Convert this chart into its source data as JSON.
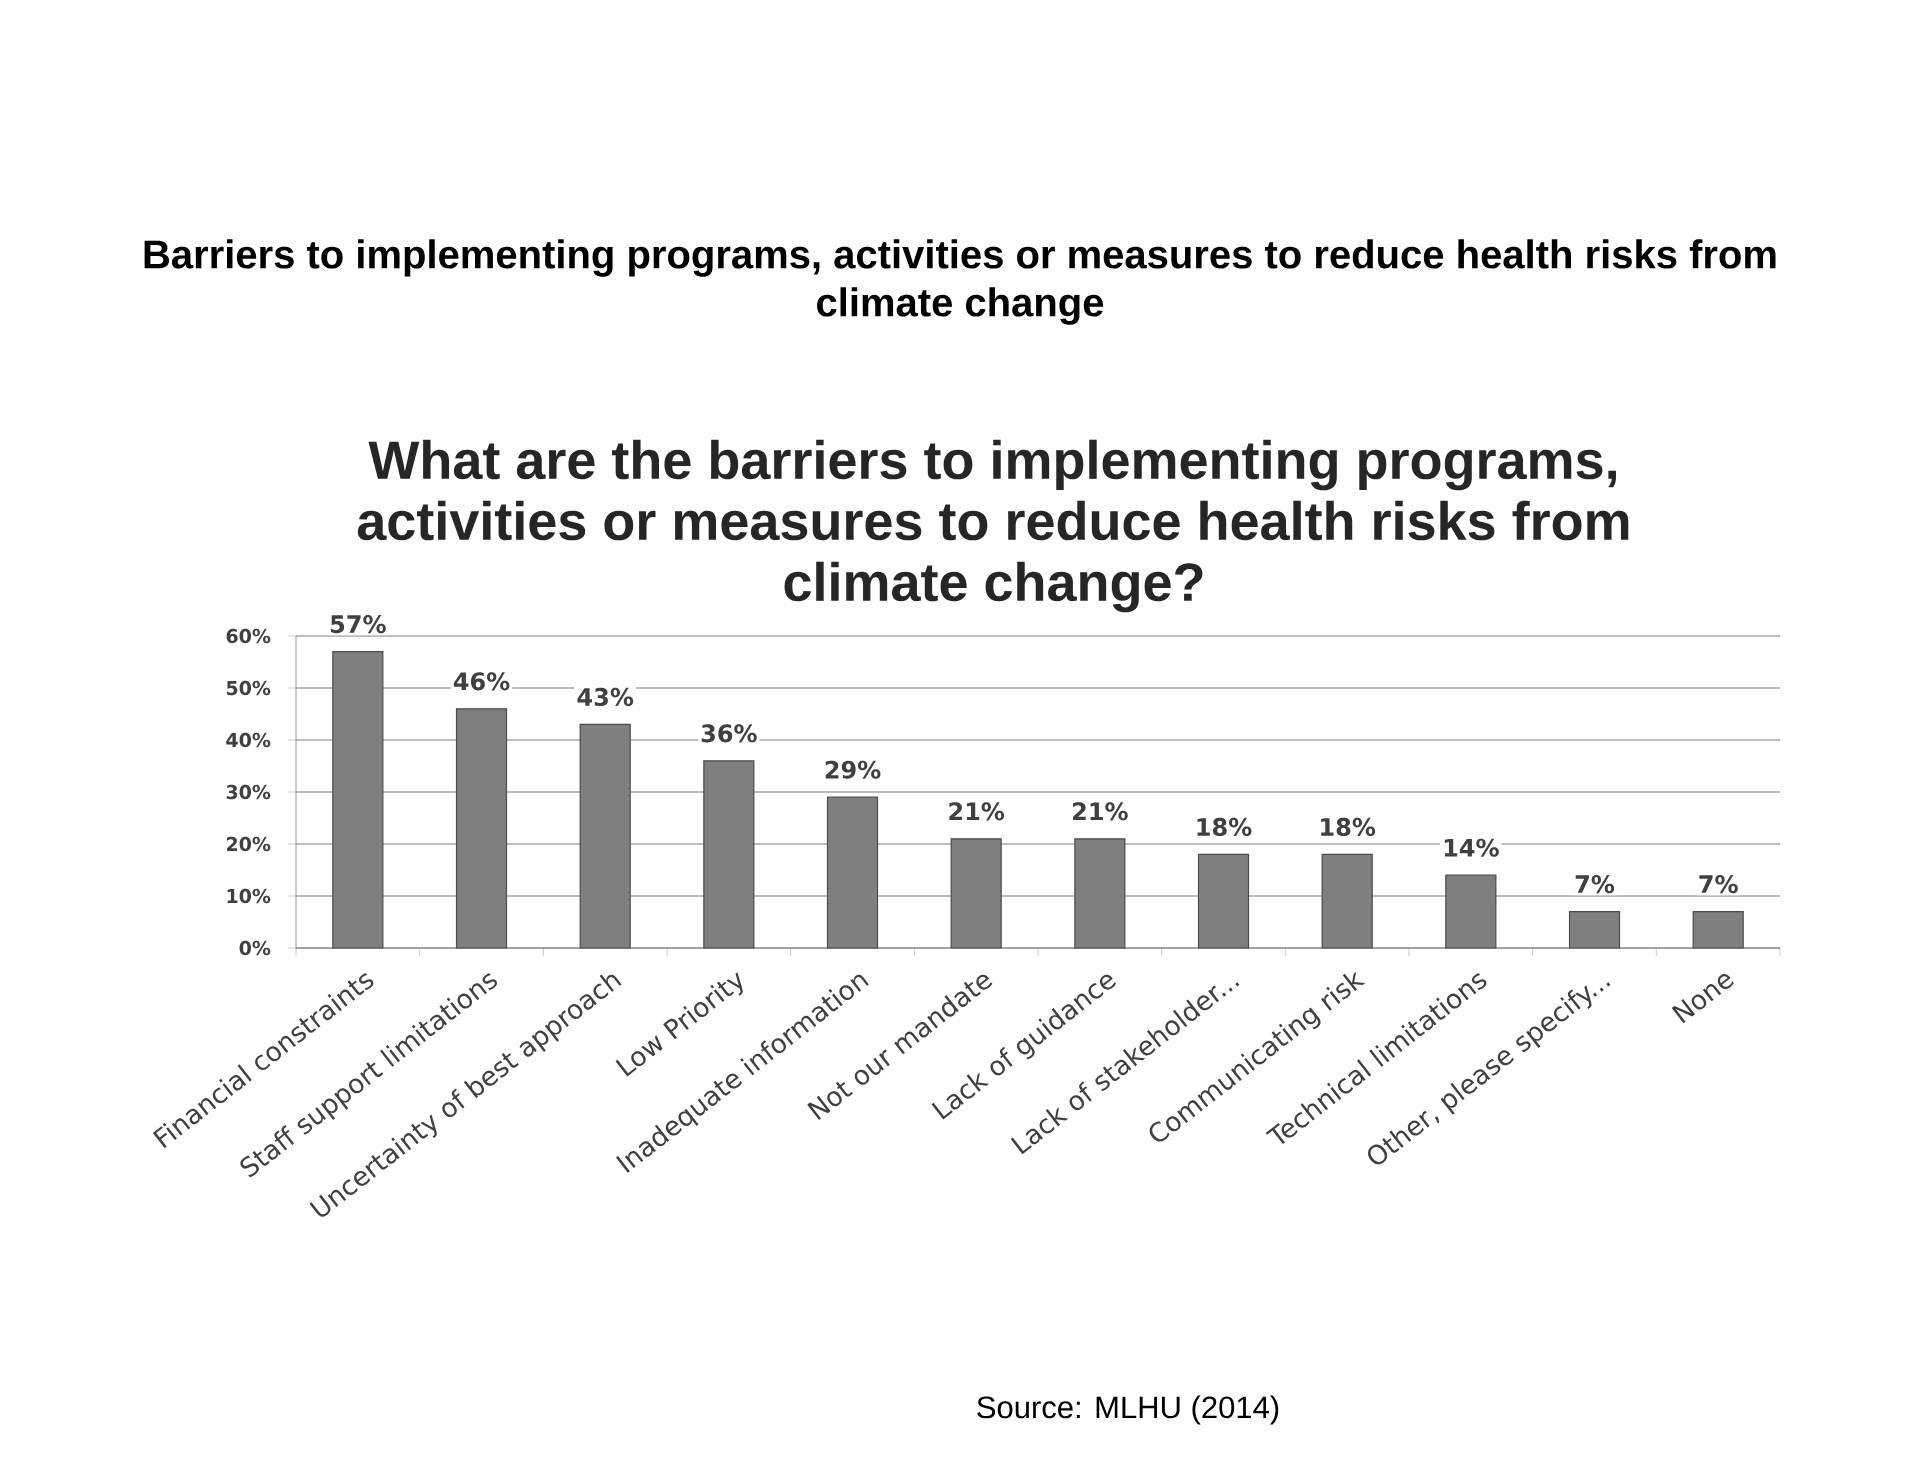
{
  "chart_data": {
    "type": "bar",
    "title": "Barriers to implementing programs, activities or measures to reduce health risks from climate change",
    "subtitle": "What are the barriers to implementing programs, activities or measures to reduce health risks from climate change?",
    "annotations": [
      "Source: MLHU (2014)"
    ],
    "categories": [
      "Financial constraints",
      "Staff support limitations",
      "Uncertainty of best approach",
      "Low Priority",
      "Inadequate information",
      "Not our mandate",
      "Lack of guidance",
      "Lack of stakeholder...",
      "Communicating risk",
      "Technical limitations",
      "Other, please specify...",
      "None"
    ],
    "values": [
      57,
      46,
      43,
      36,
      29,
      21,
      21,
      18,
      18,
      14,
      7,
      7
    ],
    "value_labels": [
      "57%",
      "46%",
      "43%",
      "36%",
      "29%",
      "21%",
      "21%",
      "18%",
      "18%",
      "14%",
      "7%",
      "7%"
    ],
    "color": "#7f7f7f",
    "ylim": [
      0,
      60
    ],
    "yticks": [
      {
        "value": 0,
        "label": "0%"
      },
      {
        "value": 10,
        "label": "10%"
      },
      {
        "value": 20,
        "label": "20%"
      },
      {
        "value": 30,
        "label": "30%"
      },
      {
        "value": 40,
        "label": "40%"
      },
      {
        "value": 50,
        "label": "50%"
      },
      {
        "value": 60,
        "label": "60%"
      }
    ],
    "grid": "y"
  }
}
